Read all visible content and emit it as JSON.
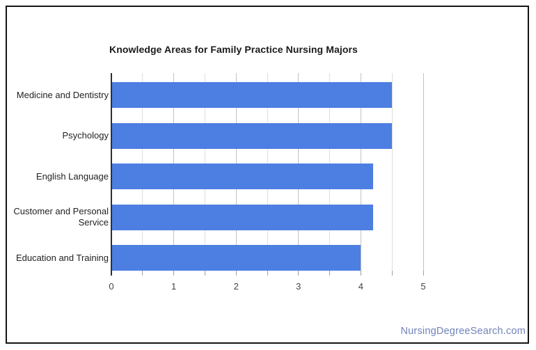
{
  "watermark": {
    "text": "NursingDegreeSearch.com",
    "color": "#7183b9"
  },
  "frame": {
    "border_color": "#141414",
    "background": "#ffffff"
  },
  "chart_data": {
    "type": "bar",
    "orientation": "horizontal",
    "title": "Knowledge Areas for Family Practice Nursing Majors",
    "categories": [
      "Medicine and Dentistry",
      "Psychology",
      "English Language",
      "Customer and Personal Service",
      "Education and Training"
    ],
    "values": [
      4.5,
      4.5,
      4.2,
      4.2,
      4.0
    ],
    "xlabel": "",
    "ylabel": "",
    "xlim": [
      0,
      5
    ],
    "x_ticks": [
      0,
      1,
      2,
      3,
      4,
      5
    ],
    "minor_tick_step": 0.5,
    "grid": true,
    "legend": "none",
    "bar_color": "#4d7ee2",
    "title_color": "#1a1a1a",
    "category_label_color": "#222222",
    "tick_label_color": "#444444",
    "gridline_major_color": "#c2c2c2",
    "gridline_minor_color": "#dedede",
    "axis_line_color": "#2f2f2f",
    "tick_mark_color": "#9e9e9e"
  }
}
